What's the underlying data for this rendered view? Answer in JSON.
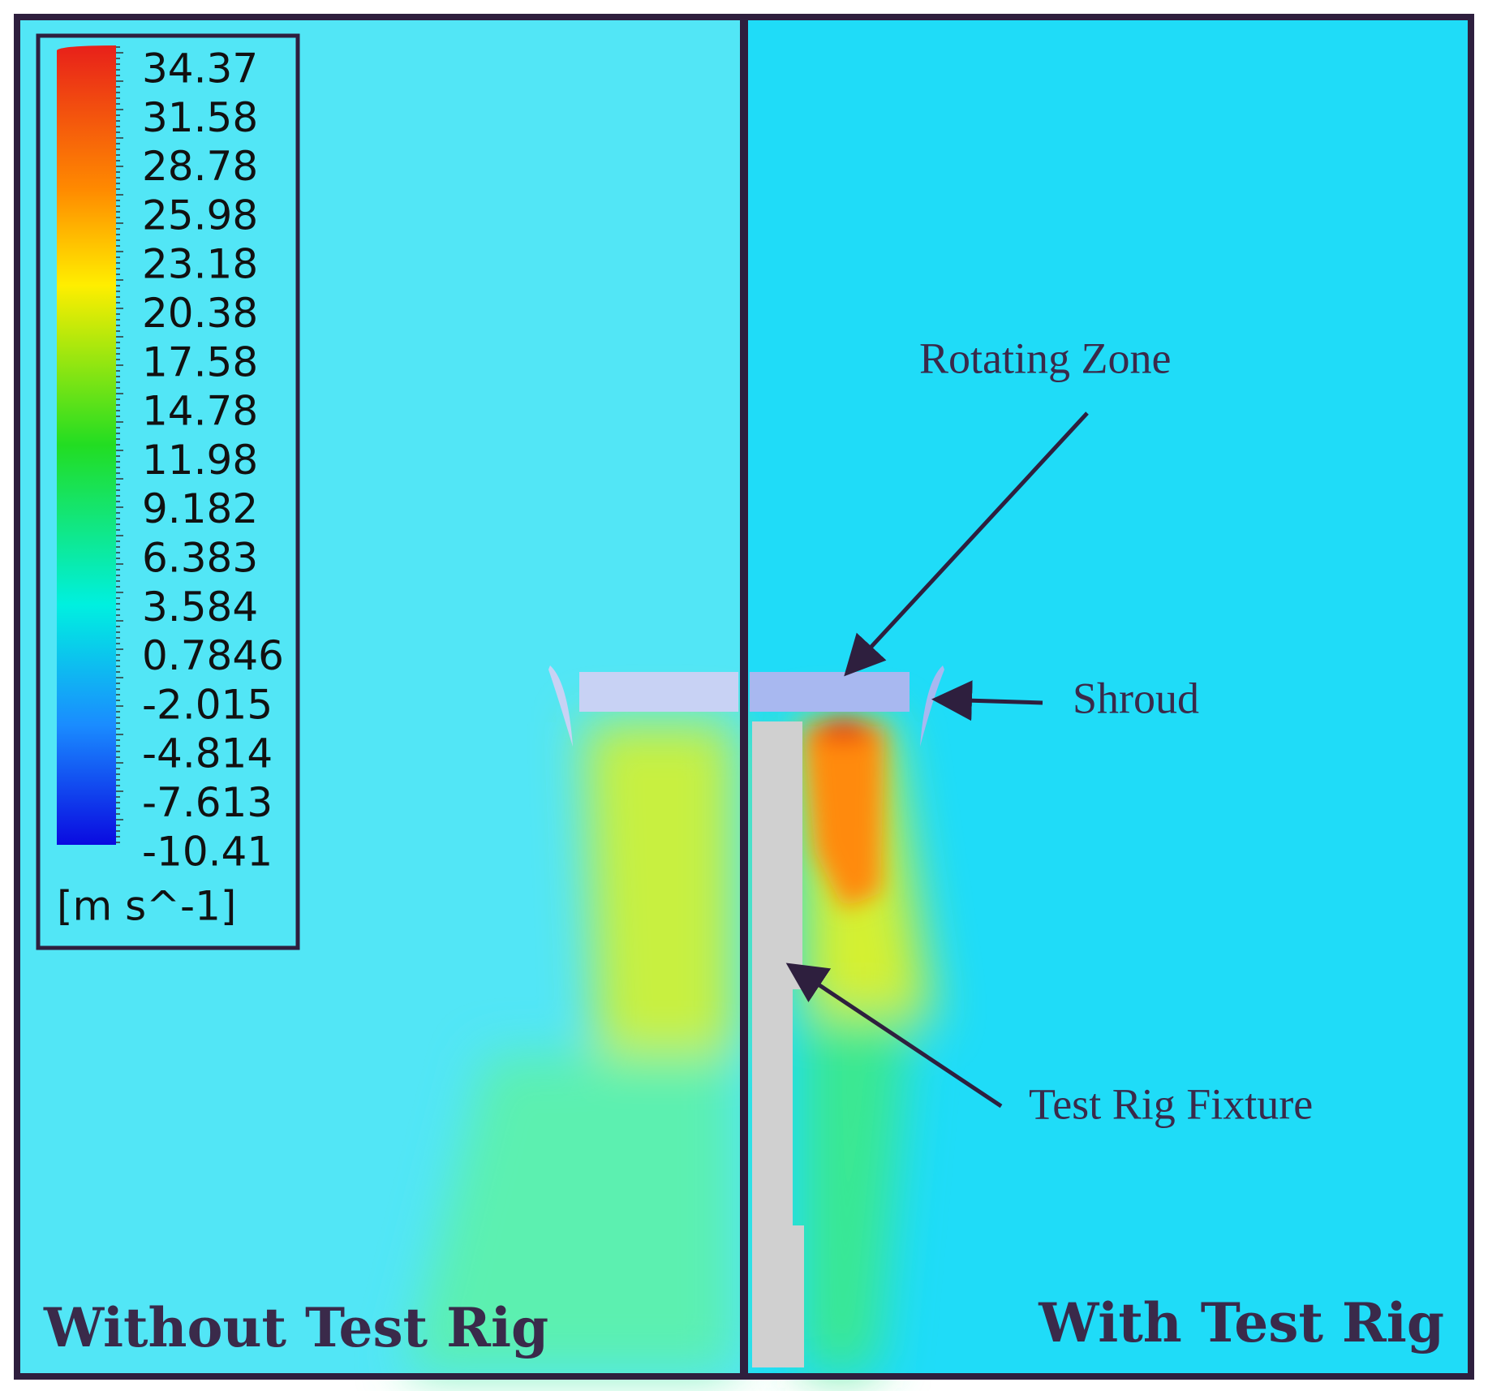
{
  "legend": {
    "ticks": [
      "34.37",
      "31.58",
      "28.78",
      "25.98",
      "23.18",
      "20.38",
      "17.58",
      "14.78",
      "11.98",
      "9.182",
      "6.383",
      "3.584",
      "0.7846",
      "-2.015",
      "-4.814",
      "-7.613",
      "-10.41"
    ],
    "unit": "[m s^-1]"
  },
  "annotations": {
    "rotating_zone": "Rotating Zone",
    "shroud": "Shroud",
    "test_rig_fixture": "Test Rig Fixture"
  },
  "panels": {
    "left": "Without Test Rig",
    "right": "With Test Rig"
  }
}
